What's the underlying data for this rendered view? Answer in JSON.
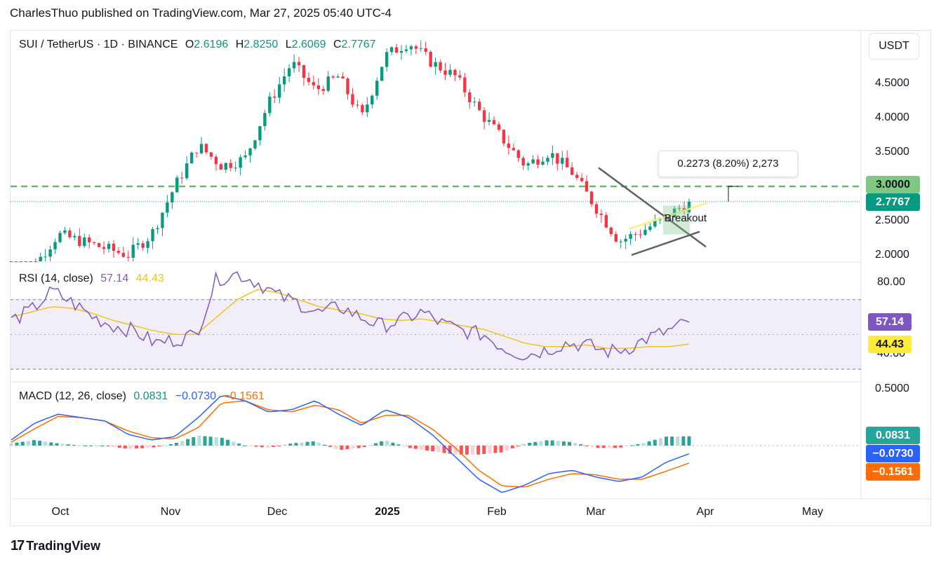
{
  "header": {
    "text": "CharlesThuo published on TradingView.com, Mar 27, 2025 05:40 UTC-4"
  },
  "footer": {
    "logo_text": "TradingView"
  },
  "colors": {
    "up": "#089981",
    "down": "#f23645",
    "rsi": "#7e57c2",
    "rsi_ma": "#f0c419",
    "macd": "#2962ff",
    "signal": "#ff6d00",
    "hline": "#4caf50"
  },
  "price_pane": {
    "symbol": "SUI / TetherUS · 1D · BINANCE",
    "ohlc": {
      "o_label": "O",
      "o": "2.6196",
      "h_label": "H",
      "h": "2.8250",
      "l_label": "L",
      "l": "2.6069",
      "c_label": "C",
      "c": "2.7767"
    },
    "currency": "USDT",
    "axis_ticks": [
      "4.5000",
      "4.0000",
      "3.5000",
      "2.5000",
      "2.0000"
    ],
    "resistance_badge": "3.0000",
    "last_price_badge": "2.7767",
    "tooltip": "0.2273 (8.20%) 2,273",
    "annotation": "Breakout"
  },
  "rsi_pane": {
    "title": "RSI (14, close)",
    "rsi_value": "57.14",
    "ma_value": "44.43",
    "axis_ticks": [
      "80.00",
      "40.00"
    ],
    "badge_rsi": "57.14",
    "badge_ma": "44.43"
  },
  "macd_pane": {
    "title": "MACD (12, 26, close)",
    "hist_value": "0.0831",
    "macd_value": "−0.0730",
    "signal_value": "−0.1561",
    "axis_ticks": [
      "0.5000"
    ],
    "badge_hist": "0.0831",
    "badge_macd": "−0.0730",
    "badge_signal": "−0.1561"
  },
  "time_axis": [
    "Oct",
    "Nov",
    "Dec",
    "2025",
    "Feb",
    "Mar",
    "Apr",
    "May"
  ],
  "chart_data": [
    {
      "type": "candlestick",
      "title": "SUI / TetherUS · 1D · BINANCE",
      "ylim": [
        2.0,
        5.0
      ],
      "resistance_level": 3.0,
      "last_close": 2.7767,
      "x": [
        "Oct",
        "Nov",
        "Dec",
        "2025",
        "Feb",
        "Mar",
        "Apr",
        "May"
      ],
      "close_path": [
        1.8,
        1.85,
        2.3,
        2.2,
        2.1,
        2.0,
        2.3,
        3.0,
        3.6,
        3.3,
        3.4,
        4.2,
        4.8,
        4.4,
        4.6,
        4.0,
        4.9,
        5.1,
        4.8,
        4.6,
        4.1,
        3.7,
        3.3,
        3.5,
        3.2,
        2.7,
        2.2,
        2.35,
        2.55,
        2.7767
      ],
      "ohlc_last": {
        "open": 2.6196,
        "high": 2.825,
        "low": 2.6069,
        "close": 2.7767
      }
    },
    {
      "type": "line",
      "title": "RSI (14, close)",
      "ylim": [
        30,
        90
      ],
      "bands": [
        70,
        30
      ],
      "series": [
        {
          "name": "RSI",
          "values": [
            58,
            64,
            75,
            68,
            60,
            55,
            52,
            45,
            47,
            50,
            82,
            85,
            80,
            72,
            68,
            62,
            66,
            60,
            55,
            58,
            63,
            56,
            52,
            50,
            42,
            38,
            41,
            45,
            44,
            40,
            42,
            48,
            52,
            57.14
          ]
        },
        {
          "name": "MA",
          "values": [
            60,
            63,
            66,
            65,
            62,
            58,
            55,
            52,
            50,
            50,
            60,
            70,
            76,
            74,
            70,
            66,
            64,
            62,
            59,
            58,
            59,
            57,
            55,
            53,
            49,
            45,
            43,
            43,
            44,
            42,
            42,
            43,
            43,
            44.43
          ]
        }
      ]
    },
    {
      "type": "bar",
      "title": "MACD (12, 26, close)",
      "ylim": [
        -0.45,
        0.55
      ],
      "series": [
        {
          "name": "MACD",
          "values": [
            0.05,
            0.2,
            0.28,
            0.25,
            0.22,
            0.1,
            0.05,
            0.08,
            0.25,
            0.45,
            0.4,
            0.3,
            0.32,
            0.4,
            0.28,
            0.18,
            0.32,
            0.25,
            0.1,
            -0.1,
            -0.3,
            -0.42,
            -0.35,
            -0.25,
            -0.22,
            -0.28,
            -0.32,
            -0.28,
            -0.15,
            -0.073
          ]
        },
        {
          "name": "Signal",
          "values": [
            0.03,
            0.15,
            0.26,
            0.25,
            0.22,
            0.13,
            0.07,
            0.06,
            0.16,
            0.38,
            0.4,
            0.32,
            0.3,
            0.36,
            0.32,
            0.2,
            0.27,
            0.27,
            0.15,
            -0.02,
            -0.22,
            -0.36,
            -0.37,
            -0.3,
            -0.25,
            -0.26,
            -0.3,
            -0.3,
            -0.23,
            -0.1561
          ]
        },
        {
          "name": "Histogram",
          "values": [
            0.02,
            0.05,
            0.02,
            0.0,
            0.0,
            -0.03,
            -0.02,
            0.02,
            0.09,
            0.07,
            0.0,
            -0.02,
            0.02,
            0.04,
            -0.04,
            -0.02,
            0.05,
            -0.02,
            -0.05,
            -0.08,
            -0.08,
            -0.06,
            0.02,
            0.05,
            0.03,
            -0.02,
            -0.02,
            0.02,
            0.08,
            0.0831
          ]
        }
      ]
    }
  ]
}
